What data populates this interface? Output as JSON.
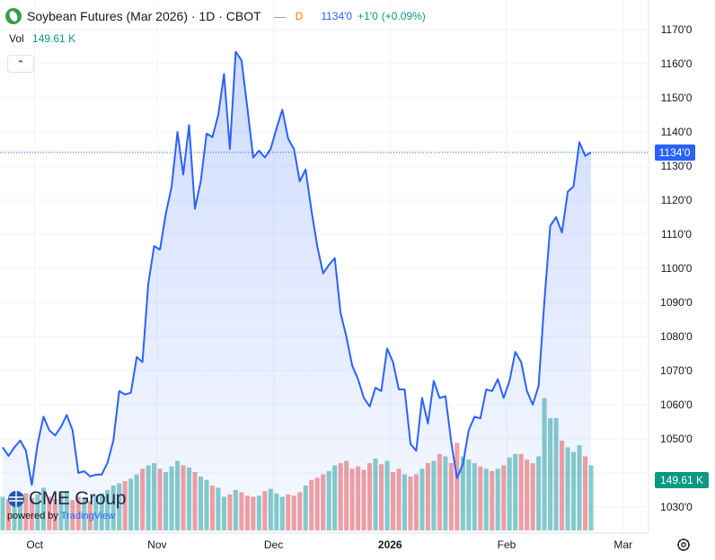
{
  "header": {
    "title": "Soybean Futures (Mar 2026) · 1D · CBOT",
    "dash": "—",
    "timeframe_badge": "D",
    "last_price": "1134'0",
    "change": "+1'0",
    "change_pct": "(+0.09%)"
  },
  "volume_legend": {
    "label": "Vol",
    "value": "149.61 K"
  },
  "collapse_label": "⌃",
  "watermark": {
    "brand": "CME Group",
    "powered_prefix": "powered by ",
    "powered_brand": "TradingView"
  },
  "colors": {
    "line": "#2962ff",
    "up_volume": "#26a69a",
    "down_volume": "#ef5350",
    "price_label_bg": "#2962ff",
    "volume_label_bg": "#089981"
  },
  "chart_data": {
    "type": "line",
    "title": "Soybean Futures (Mar 2026) · 1D · CBOT",
    "price_axis": {
      "ticks": [
        1030,
        1040,
        1050,
        1060,
        1070,
        1080,
        1090,
        1100,
        1110,
        1120,
        1130,
        1140,
        1150,
        1160,
        1170
      ],
      "tick_labels": [
        "1030'0",
        "1040'0",
        "1050'0",
        "1060'0",
        "1070'0",
        "1080'0",
        "1090'0",
        "1100'0",
        "1110'0",
        "1120'0",
        "1130'0",
        "1140'0",
        "1150'0",
        "1160'0",
        "1170'0"
      ],
      "range": [
        1022,
        1172
      ]
    },
    "time_axis": {
      "labels": [
        "Oct",
        "Nov",
        "Dec",
        "2026",
        "Feb",
        "Mar"
      ],
      "label_positions_in_series": [
        5.5,
        26.5,
        46.5,
        66.5,
        86.5,
        106.5
      ]
    },
    "last_price_label": "1134'0",
    "last_volume_label": "149.61 K",
    "series": [
      {
        "values": [
          1047.5,
          1045,
          1047.5,
          1049.5,
          1046.5,
          1036.5,
          1048.5,
          1056.5,
          1052.5,
          1051,
          1053.5,
          1057,
          1052.5,
          1040,
          1040.5,
          1039,
          1039.5,
          1039.5,
          1043,
          1049.5,
          1064,
          1063,
          1063.5,
          1074,
          1072.5,
          1095.5,
          1106.5,
          1105.5,
          1116,
          1124,
          1140,
          1127.5,
          1142,
          1117.5,
          1125.5,
          1139.5,
          1138.5,
          1145,
          1157,
          1135,
          1163.5,
          1161,
          1147,
          1132.5,
          1134.5,
          1132.5,
          1135,
          1141,
          1146.5,
          1138,
          1135,
          1125.5,
          1129,
          1117,
          1106.5,
          1098.5,
          1101,
          1103,
          1087,
          1080,
          1071.5,
          1067.5,
          1062,
          1059.5,
          1065,
          1064,
          1076.5,
          1072.5,
          1064.5,
          1064.5,
          1048.5,
          1046.5,
          1062,
          1054.5,
          1067,
          1062,
          1062.5,
          1049,
          1038.5,
          1042.5,
          1052.5,
          1056.5,
          1056,
          1064.5,
          1064,
          1067.5,
          1062,
          1067,
          1075.5,
          1072.5,
          1064,
          1060,
          1065.5,
          1090.5,
          1112.5,
          1115,
          1110.5,
          1122.5,
          1124,
          1137,
          1133,
          1134
        ],
        "volume": [
          30,
          28,
          31,
          27,
          33,
          29,
          32,
          38,
          30,
          28,
          33,
          35,
          27,
          30,
          29,
          26,
          31,
          33,
          36,
          40,
          42,
          44,
          46,
          50,
          55,
          58,
          60,
          55,
          52,
          57,
          62,
          58,
          56,
          52,
          48,
          45,
          40,
          38,
          30,
          32,
          36,
          34,
          31,
          30,
          31,
          35,
          37,
          33,
          30,
          32,
          31,
          34,
          40,
          45,
          47,
          50,
          53,
          58,
          60,
          62,
          55,
          57,
          54,
          60,
          64,
          59,
          62,
          52,
          55,
          50,
          48,
          50,
          55,
          60,
          62,
          68,
          66,
          60,
          78,
          66,
          63,
          60,
          57,
          55,
          53,
          55,
          58,
          65,
          68,
          68,
          63,
          60,
          66,
          118,
          100,
          100,
          80,
          74,
          70,
          76,
          66,
          58
        ],
        "volume_direction": [
          "up",
          "down",
          "up",
          "up",
          "down",
          "down",
          "up",
          "up",
          "down",
          "down",
          "up",
          "up",
          "down",
          "down",
          "up",
          "down",
          "up",
          "up",
          "up",
          "up",
          "up",
          "down",
          "up",
          "up",
          "down",
          "up",
          "up",
          "down",
          "up",
          "up",
          "up",
          "down",
          "up",
          "down",
          "up",
          "up",
          "down",
          "up",
          "up",
          "down",
          "up",
          "down",
          "down",
          "down",
          "up",
          "down",
          "up",
          "up",
          "up",
          "down",
          "down",
          "down",
          "up",
          "down",
          "down",
          "down",
          "up",
          "up",
          "down",
          "down",
          "down",
          "down",
          "down",
          "down",
          "up",
          "down",
          "up",
          "down",
          "down",
          "up",
          "down",
          "down",
          "up",
          "down",
          "up",
          "down",
          "up",
          "down",
          "down",
          "up",
          "up",
          "up",
          "down",
          "up",
          "down",
          "up",
          "down",
          "up",
          "up",
          "down",
          "down",
          "down",
          "up",
          "up",
          "up",
          "up",
          "down",
          "up",
          "up",
          "up",
          "down",
          "up"
        ]
      }
    ]
  }
}
